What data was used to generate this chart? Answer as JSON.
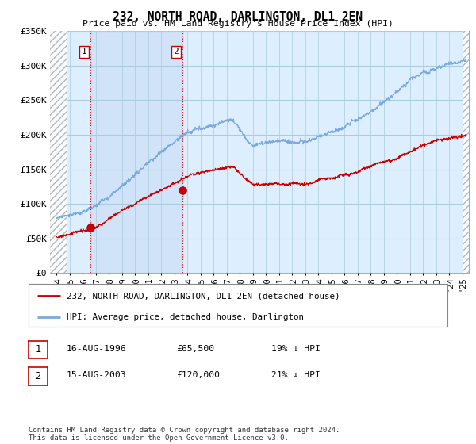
{
  "title": "232, NORTH ROAD, DARLINGTON, DL1 2EN",
  "subtitle": "Price paid vs. HM Land Registry's House Price Index (HPI)",
  "ylim": [
    0,
    350000
  ],
  "yticks": [
    0,
    50000,
    100000,
    150000,
    200000,
    250000,
    300000,
    350000
  ],
  "ytick_labels": [
    "£0",
    "£50K",
    "£100K",
    "£150K",
    "£200K",
    "£250K",
    "£300K",
    "£350K"
  ],
  "hpi_color": "#7aaadd",
  "price_color": "#cc0000",
  "bg_color": "#ffffff",
  "plot_bg_color": "#ddeeff",
  "grid_color": "#ffffff",
  "sale1_date_x": 1996.62,
  "sale1_price": 65500,
  "sale1_label": "1",
  "sale2_date_x": 2003.62,
  "sale2_price": 120000,
  "sale2_label": "2",
  "legend_line1": "232, NORTH ROAD, DARLINGTON, DL1 2EN (detached house)",
  "legend_line2": "HPI: Average price, detached house, Darlington",
  "table_row1": [
    "1",
    "16-AUG-1996",
    "£65,500",
    "19% ↓ HPI"
  ],
  "table_row2": [
    "2",
    "15-AUG-2003",
    "£120,000",
    "21% ↓ HPI"
  ],
  "footer": "Contains HM Land Registry data © Crown copyright and database right 2024.\nThis data is licensed under the Open Government Licence v3.0.",
  "xmin": 1993.5,
  "xmax": 2025.5,
  "hpi_start_year": 1994.0,
  "hpi_end_year": 2025.3
}
